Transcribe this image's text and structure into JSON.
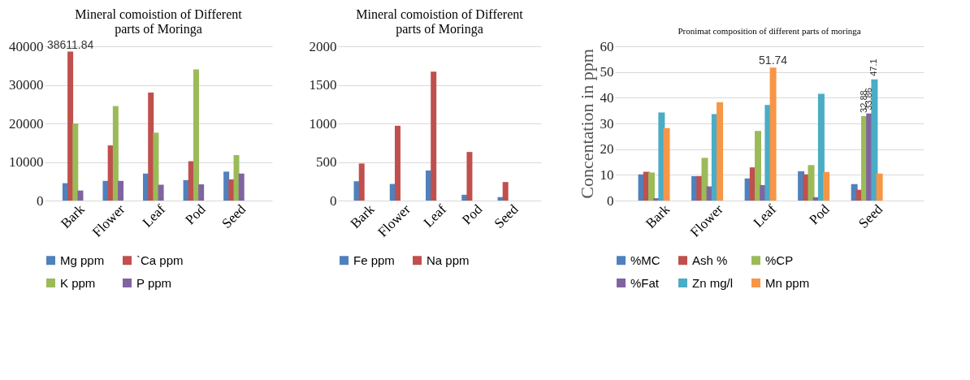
{
  "chart_data": [
    {
      "type": "bar",
      "title": [
        "Mineral comoistion of Different",
        "parts of Moringa"
      ],
      "categories": [
        "Bark",
        "Flower",
        "Leaf",
        "Pod",
        "Seed"
      ],
      "ylim": [
        0,
        40000
      ],
      "yticks": [
        0,
        10000,
        20000,
        30000,
        40000
      ],
      "grid": "y",
      "legend": "bottom",
      "series": [
        {
          "name": "Mg ppm",
          "color": "#4f81bd",
          "values": [
            4500,
            5100,
            7000,
            5300,
            7500
          ]
        },
        {
          "name": "`Ca ppm",
          "color": "#c0504d",
          "values": [
            38611.84,
            14300,
            28000,
            10200,
            5500
          ],
          "value_labels": [
            "38611.84",
            null,
            null,
            null,
            null
          ]
        },
        {
          "name": "K ppm",
          "color": "#9bbb59",
          "values": [
            20000,
            24500,
            17600,
            34000,
            11800
          ]
        },
        {
          "name": "P ppm",
          "color": "#8064a2",
          "values": [
            2600,
            5100,
            4100,
            4200,
            7000
          ]
        }
      ]
    },
    {
      "type": "bar",
      "title": [
        "Mineral comoistion of Different",
        "parts of Moringa"
      ],
      "categories": [
        "Bark",
        "Flower",
        "Leaf",
        "Pod",
        "Seed"
      ],
      "ylim": [
        0,
        2000
      ],
      "yticks": [
        0,
        500,
        1000,
        1500,
        2000
      ],
      "grid": "y",
      "legend": "bottom",
      "series": [
        {
          "name": "Fe ppm",
          "color": "#4f81bd",
          "values": [
            250,
            215,
            390,
            75,
            45
          ]
        },
        {
          "name": "Na ppm",
          "color": "#c0504d",
          "values": [
            480,
            970,
            1670,
            630,
            240
          ]
        }
      ]
    },
    {
      "type": "bar",
      "title": "Pronimat composition of different parts of moringa",
      "ylabel": "Concentation in ppm",
      "categories": [
        "Bark",
        "Flower",
        "Leaf",
        "Pod",
        "Seed"
      ],
      "ylim": [
        0,
        60
      ],
      "yticks": [
        0,
        10,
        20,
        30,
        40,
        50,
        60
      ],
      "grid": "y",
      "legend": "bottom",
      "series": [
        {
          "name": "%MC",
          "color": "#4f81bd",
          "values": [
            10.2,
            9.5,
            8.6,
            11.4,
            6.4
          ]
        },
        {
          "name": "Ash %",
          "color": "#c0504d",
          "values": [
            11.2,
            9.5,
            12.9,
            10.2,
            4.2
          ]
        },
        {
          "name": "%CP",
          "color": "#9bbb59",
          "values": [
            10.9,
            16.6,
            27.1,
            13.8,
            32.88
          ],
          "value_labels": [
            null,
            null,
            null,
            null,
            "32.88"
          ]
        },
        {
          "name": "%Fat",
          "color": "#8064a2",
          "values": [
            0.9,
            5.5,
            6.0,
            1.3,
            33.86
          ],
          "value_labels": [
            null,
            null,
            null,
            null,
            "33.86"
          ]
        },
        {
          "name": "Zn mg/l",
          "color": "#4bacc6",
          "values": [
            34.3,
            33.6,
            37.2,
            41.5,
            47.1
          ],
          "value_labels": [
            null,
            null,
            null,
            null,
            "47.1"
          ]
        },
        {
          "name": "Mn ppm",
          "color": "#f79646",
          "values": [
            28.2,
            38.2,
            51.74,
            11.1,
            10.5
          ],
          "value_labels": [
            null,
            null,
            "51.74",
            null,
            null
          ]
        }
      ]
    }
  ]
}
